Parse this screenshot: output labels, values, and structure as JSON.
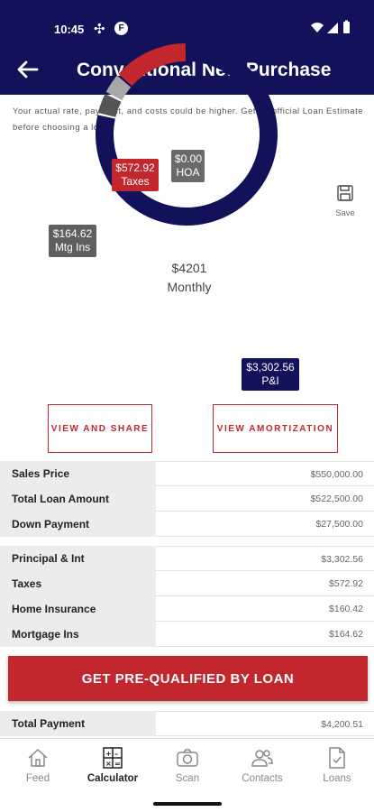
{
  "status_bar": {
    "time": "10:45"
  },
  "header": {
    "title": "Conventional New Purchase"
  },
  "disclaimer": "Your actual rate, payment, and costs could be higher. Get an official Loan Estimate before choosing a loan.",
  "chart_data": {
    "type": "pie",
    "center_amount": "$4201",
    "center_label": "Monthly",
    "slices": [
      {
        "label": "P&I",
        "value": 3302.56,
        "display": "$3,302.56",
        "color": "#12125a"
      },
      {
        "label": "Mtg Ins",
        "value": 164.62,
        "display": "$164.62",
        "color": "#555555"
      },
      {
        "label": "Home Insurance",
        "value": 160.42,
        "color": "#a8a8a8"
      },
      {
        "label": "Taxes",
        "value": 572.92,
        "display": "$572.92",
        "color": "#c1272d"
      },
      {
        "label": "HOA",
        "value": 0.0,
        "display": "$0.00",
        "color": "#6a6a6a"
      }
    ]
  },
  "save_label": "Save",
  "buttons": {
    "view_share": "VIEW AND SHARE",
    "view_amortization": "VIEW AMORTIZATION"
  },
  "loan_table": [
    {
      "label": "Sales Price",
      "value": "$550,000.00"
    },
    {
      "label": "Total Loan Amount",
      "value": "$522,500.00"
    },
    {
      "label": "Down Payment",
      "value": "$27,500.00"
    }
  ],
  "payment_table": [
    {
      "label": "Principal & Int",
      "value": "$3,302.56"
    },
    {
      "label": "Taxes",
      "value": "$572.92"
    },
    {
      "label": "Home Insurance",
      "value": "$160.42"
    },
    {
      "label": "Mortgage Ins",
      "value": "$164.62"
    }
  ],
  "cta_label": "GET PRE-QUALIFIED BY LOAN",
  "total_row": {
    "label": "Total Payment",
    "value": "$4,200.51"
  },
  "nav": [
    {
      "label": "Feed",
      "icon": "home-icon"
    },
    {
      "label": "Calculator",
      "icon": "calculator-icon"
    },
    {
      "label": "Scan",
      "icon": "camera-icon"
    },
    {
      "label": "Contacts",
      "icon": "contacts-icon"
    },
    {
      "label": "Loans",
      "icon": "document-check-icon"
    }
  ],
  "colors": {
    "navy": "#12125a",
    "red": "#c1272d",
    "gray_label_bg": "#ececec"
  }
}
